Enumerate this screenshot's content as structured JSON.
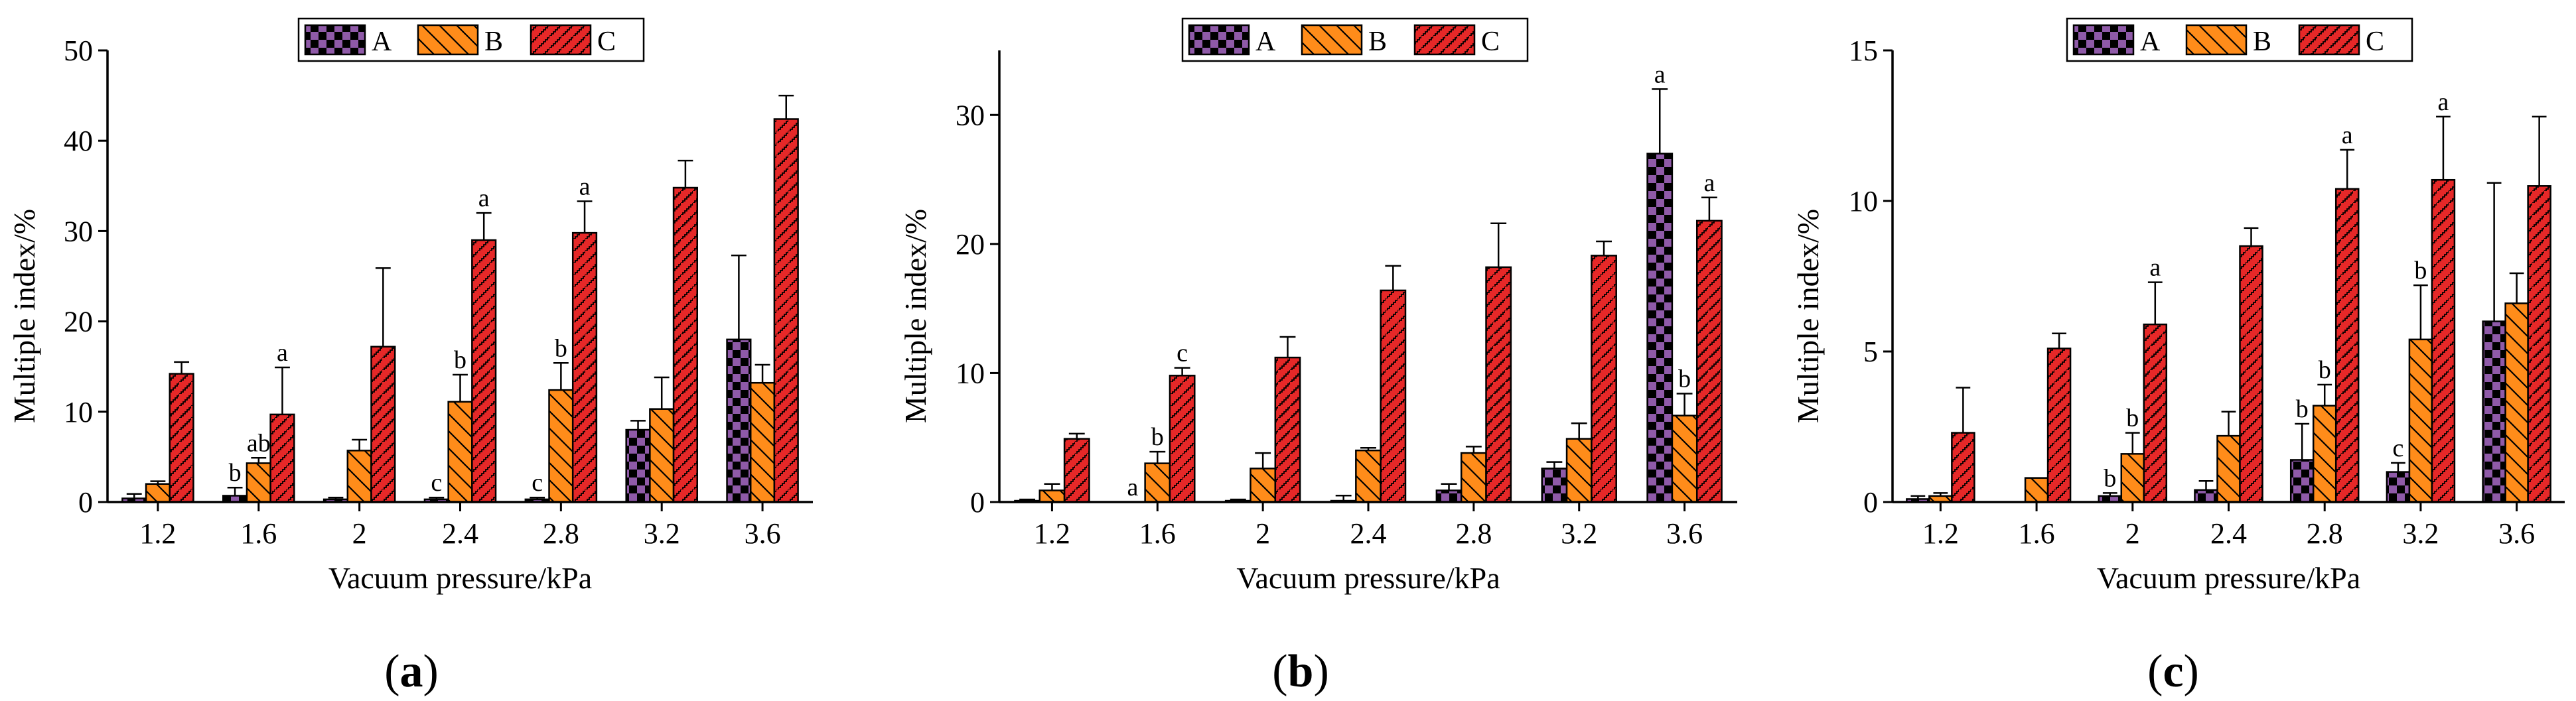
{
  "legend_names": [
    "A",
    "B",
    "C"
  ],
  "series_colors": {
    "A": "#8f5aa8",
    "B": "#ff8c1a",
    "C": "#e62828"
  },
  "panels": [
    {
      "label_open": "(",
      "label_letter": "a",
      "label_close": ")"
    },
    {
      "label_open": "(",
      "label_letter": "b",
      "label_close": ")"
    },
    {
      "label_open": "(",
      "label_letter": "c",
      "label_close": ")"
    }
  ],
  "chart_data": [
    {
      "type": "bar",
      "xlabel": "Vacuum pressure/kPa",
      "ylabel": "Multiple index/%",
      "ylim": [
        0,
        50
      ],
      "yticks": [
        0,
        10,
        20,
        30,
        40,
        50
      ],
      "categories": [
        "1.2",
        "1.6",
        "2",
        "2.4",
        "2.8",
        "3.2",
        "3.6"
      ],
      "legend": "top",
      "series": [
        {
          "name": "A",
          "values": [
            0.4,
            0.7,
            0.3,
            0.3,
            0.3,
            8.0,
            18.0
          ],
          "errors": [
            0.5,
            0.9,
            0.2,
            0.2,
            0.2,
            1.0,
            9.3
          ],
          "letters": [
            "",
            "b",
            "",
            "c",
            "c",
            "",
            ""
          ]
        },
        {
          "name": "B",
          "values": [
            2.0,
            4.3,
            5.7,
            11.1,
            12.4,
            10.3,
            13.2
          ],
          "errors": [
            0.3,
            0.6,
            1.2,
            3.0,
            3.0,
            3.5,
            2.0
          ],
          "letters": [
            "",
            "ab",
            "",
            "b",
            "b",
            "",
            ""
          ]
        },
        {
          "name": "C",
          "values": [
            14.2,
            9.7,
            17.2,
            29.0,
            29.8,
            34.8,
            42.4
          ],
          "errors": [
            1.3,
            5.2,
            8.7,
            3.0,
            3.5,
            3.0,
            2.6
          ],
          "letters": [
            "",
            "a",
            "",
            "a",
            "a",
            "",
            ""
          ]
        }
      ]
    },
    {
      "type": "bar",
      "xlabel": "Vacuum pressure/kPa",
      "ylabel": "Multiple index/%",
      "ylim": [
        0,
        35
      ],
      "yticks": [
        0,
        10,
        20,
        30
      ],
      "categories": [
        "1.2",
        "1.6",
        "2",
        "2.4",
        "2.8",
        "3.2",
        "3.6"
      ],
      "legend": "top",
      "series": [
        {
          "name": "A",
          "values": [
            0.1,
            0.0,
            0.1,
            0.1,
            0.9,
            2.6,
            27.0
          ],
          "errors": [
            0.1,
            0.0,
            0.1,
            0.4,
            0.5,
            0.5,
            5.0
          ],
          "letters": [
            "",
            "a",
            "",
            "",
            "",
            "",
            "a"
          ]
        },
        {
          "name": "B",
          "values": [
            0.9,
            3.0,
            2.6,
            4.0,
            3.8,
            4.9,
            6.7
          ],
          "errors": [
            0.5,
            0.9,
            1.2,
            0.2,
            0.5,
            1.2,
            1.7
          ],
          "letters": [
            "",
            "b",
            "",
            "",
            "",
            "",
            "b"
          ]
        },
        {
          "name": "C",
          "values": [
            4.9,
            9.8,
            11.2,
            16.4,
            18.2,
            19.1,
            21.8
          ],
          "errors": [
            0.4,
            0.6,
            1.6,
            1.9,
            3.4,
            1.1,
            1.8
          ],
          "letters": [
            "",
            "c",
            "",
            "",
            "",
            "",
            "a"
          ]
        }
      ]
    },
    {
      "type": "bar",
      "xlabel": "Vacuum pressure/kPa",
      "ylabel": "Multiple index/%",
      "ylim": [
        0,
        15
      ],
      "yticks": [
        0,
        5,
        10,
        15
      ],
      "categories": [
        "1.2",
        "1.6",
        "2",
        "2.4",
        "2.8",
        "3.2",
        "3.6"
      ],
      "legend": "top",
      "series": [
        {
          "name": "A",
          "values": [
            0.1,
            0.0,
            0.2,
            0.4,
            1.4,
            1.0,
            6.0
          ],
          "errors": [
            0.1,
            0.0,
            0.1,
            0.3,
            1.2,
            0.3,
            4.6
          ],
          "letters": [
            "",
            "",
            "b",
            "",
            "b",
            "c",
            ""
          ]
        },
        {
          "name": "B",
          "values": [
            0.2,
            0.8,
            1.6,
            2.2,
            3.2,
            5.4,
            6.6
          ],
          "errors": [
            0.1,
            0.0,
            0.7,
            0.8,
            0.7,
            1.8,
            1.0
          ],
          "letters": [
            "",
            "",
            "b",
            "",
            "b",
            "b",
            ""
          ]
        },
        {
          "name": "C",
          "values": [
            2.3,
            5.1,
            5.9,
            8.5,
            10.4,
            10.7,
            10.5
          ],
          "errors": [
            1.5,
            0.5,
            1.4,
            0.6,
            1.3,
            2.1,
            2.3
          ],
          "letters": [
            "",
            "",
            "a",
            "",
            "a",
            "a",
            ""
          ]
        }
      ]
    }
  ]
}
